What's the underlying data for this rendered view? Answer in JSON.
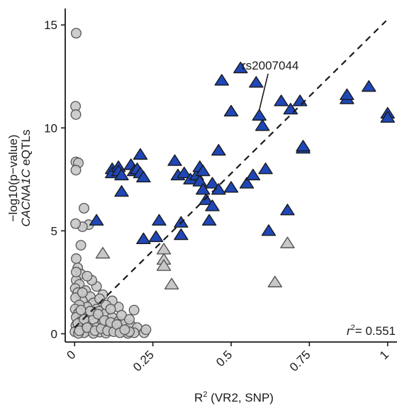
{
  "chart_data": {
    "type": "scatter",
    "title": "",
    "xlabel_main": "R",
    "xlabel_sup": "2",
    "xlabel_rest": " (VR2, SNP)",
    "ylabel_line1": "−log10(p−value)",
    "ylabel_line2_italic": "CACNA1C",
    "ylabel_line2_rest": " eQTLs",
    "xlim": [
      -0.03,
      1.03
    ],
    "ylim": [
      -0.4,
      15.8
    ],
    "x_ticks": [
      0,
      0.25,
      0.5,
      0.75,
      1
    ],
    "x_tick_labels": [
      "0",
      "0.25",
      "0.5",
      "0.75",
      "1"
    ],
    "y_ticks": [
      0,
      5,
      10,
      15
    ],
    "y_tick_labels": [
      "0",
      "5",
      "10",
      "15"
    ],
    "grid": false,
    "legend": "none",
    "colors": {
      "gray_fill": "#c8c8c8",
      "blue_fill": "#1f47b8",
      "edge": "#1a1a1a",
      "edge_gray": "#555555"
    },
    "fit_line": {
      "x": [
        0,
        0.995
      ],
      "y": [
        0.3,
        15.2
      ],
      "style": "dashed"
    },
    "annotation_text": "rs2007044",
    "annotation_point": {
      "x": 0.59,
      "y": 10.6
    },
    "stat_label": "= 0.551",
    "stat_label_prefix": "r",
    "stat_label_sup": "2",
    "series": [
      {
        "marker": "circle",
        "fill": "gray",
        "points": [
          [
            0.005,
            14.6
          ],
          [
            0.003,
            11.05
          ],
          [
            0.004,
            10.65
          ],
          [
            0.004,
            8.35
          ],
          [
            0.012,
            8.3
          ],
          [
            0.004,
            7.95
          ],
          [
            0.03,
            6.1
          ],
          [
            0.045,
            5.3
          ],
          [
            0.025,
            5.2
          ],
          [
            0.003,
            5.35
          ],
          [
            0.02,
            4.3
          ],
          [
            0.005,
            3.65
          ],
          [
            0.01,
            3.2
          ],
          [
            0.02,
            2.9
          ],
          [
            0.005,
            2.6
          ],
          [
            0.015,
            2.4
          ],
          [
            0.035,
            2.1
          ],
          [
            0.002,
            2.2
          ],
          [
            0.01,
            2.0
          ],
          [
            0.05,
            1.8
          ],
          [
            0.025,
            1.6
          ],
          [
            0.003,
            1.75
          ],
          [
            0.06,
            1.5
          ],
          [
            0.04,
            1.3
          ],
          [
            0.07,
            1.2
          ],
          [
            0.015,
            1.4
          ],
          [
            0.08,
            1.1
          ],
          [
            0.002,
            1.2
          ],
          [
            0.03,
            1.0
          ],
          [
            0.1,
            1.0
          ],
          [
            0.05,
            0.9
          ],
          [
            0.012,
            1.0
          ],
          [
            0.12,
            0.8
          ],
          [
            0.06,
            0.7
          ],
          [
            0.005,
            0.8
          ],
          [
            0.14,
            0.6
          ],
          [
            0.02,
            0.6
          ],
          [
            0.09,
            0.55
          ],
          [
            0.16,
            0.5
          ],
          [
            0.035,
            0.45
          ],
          [
            0.18,
            0.4
          ],
          [
            0.11,
            0.35
          ],
          [
            0.004,
            0.4
          ],
          [
            0.07,
            0.3
          ],
          [
            0.2,
            0.3
          ],
          [
            0.025,
            0.25
          ],
          [
            0.13,
            0.2
          ],
          [
            0.045,
            0.15
          ],
          [
            0.15,
            0.12
          ],
          [
            0.001,
            0.1
          ],
          [
            0.08,
            0.08
          ],
          [
            0.19,
            0.05
          ],
          [
            0.03,
            0.05
          ],
          [
            0.1,
            0.03
          ],
          [
            0.06,
            0.02
          ],
          [
            0.17,
            0.02
          ],
          [
            0.012,
            0.02
          ],
          [
            0.14,
            1.3
          ],
          [
            0.12,
            1.6
          ],
          [
            0.09,
            1.9
          ],
          [
            0.07,
            2.3
          ],
          [
            0.055,
            2.6
          ],
          [
            0.04,
            2.8
          ],
          [
            0.1,
            1.4
          ],
          [
            0.08,
            1.7
          ],
          [
            0.15,
            0.9
          ],
          [
            0.175,
            0.7
          ],
          [
            0.19,
            1.15
          ],
          [
            0.175,
            0.1
          ],
          [
            0.222,
            0.05
          ],
          [
            0.228,
            0.2
          ],
          [
            0.005,
            3.0
          ],
          [
            0.01,
            0.5
          ],
          [
            0.015,
            0.15
          ],
          [
            0.02,
            1.15
          ],
          [
            0.025,
            2.0
          ],
          [
            0.03,
            0.7
          ],
          [
            0.04,
            0.3
          ],
          [
            0.05,
            1.1
          ],
          [
            0.065,
            0.15
          ],
          [
            0.075,
            0.95
          ],
          [
            0.085,
            0.25
          ],
          [
            0.095,
            0.65
          ],
          [
            0.105,
            0.15
          ],
          [
            0.115,
            0.55
          ],
          [
            0.125,
            0.1
          ],
          [
            0.135,
            0.45
          ],
          [
            0.145,
            0.05
          ],
          [
            0.16,
            0.2
          ],
          [
            0.115,
            1.2
          ]
        ]
      },
      {
        "marker": "triangle",
        "fill": "gray",
        "points": [
          [
            0.09,
            3.9
          ],
          [
            0.285,
            4.1
          ],
          [
            0.285,
            3.6
          ],
          [
            0.285,
            3.3
          ],
          [
            0.31,
            2.4
          ],
          [
            0.68,
            4.4
          ],
          [
            0.64,
            2.5
          ]
        ]
      },
      {
        "marker": "triangle",
        "fill": "blue",
        "points": [
          [
            0.07,
            5.5
          ],
          [
            0.12,
            8.0
          ],
          [
            0.12,
            7.8
          ],
          [
            0.14,
            8.1
          ],
          [
            0.14,
            7.9
          ],
          [
            0.15,
            7.7
          ],
          [
            0.15,
            6.9
          ],
          [
            0.18,
            8.2
          ],
          [
            0.19,
            7.9
          ],
          [
            0.2,
            8.0
          ],
          [
            0.21,
            8.7
          ],
          [
            0.21,
            7.8
          ],
          [
            0.22,
            7.6
          ],
          [
            0.22,
            4.6
          ],
          [
            0.26,
            4.7
          ],
          [
            0.27,
            5.5
          ],
          [
            0.32,
            8.4
          ],
          [
            0.33,
            7.7
          ],
          [
            0.34,
            5.4
          ],
          [
            0.34,
            4.8
          ],
          [
            0.35,
            7.8
          ],
          [
            0.37,
            7.5
          ],
          [
            0.39,
            7.7
          ],
          [
            0.4,
            8.1
          ],
          [
            0.4,
            7.4
          ],
          [
            0.41,
            7.9
          ],
          [
            0.41,
            7.0
          ],
          [
            0.42,
            6.5
          ],
          [
            0.43,
            5.5
          ],
          [
            0.44,
            6.2
          ],
          [
            0.44,
            7.3
          ],
          [
            0.46,
            8.9
          ],
          [
            0.46,
            7.0
          ],
          [
            0.5,
            7.1
          ],
          [
            0.55,
            7.3
          ],
          [
            0.57,
            7.7
          ],
          [
            0.61,
            8.0
          ],
          [
            0.62,
            5.0
          ],
          [
            0.47,
            12.3
          ],
          [
            0.5,
            10.8
          ],
          [
            0.53,
            12.9
          ],
          [
            0.58,
            12.2
          ],
          [
            0.59,
            10.6
          ],
          [
            0.6,
            10.1
          ],
          [
            0.66,
            11.3
          ],
          [
            0.69,
            10.9
          ],
          [
            0.72,
            11.3
          ],
          [
            0.73,
            9.0
          ],
          [
            0.73,
            9.1
          ],
          [
            0.68,
            6.0
          ],
          [
            0.87,
            11.4
          ],
          [
            0.87,
            11.6
          ],
          [
            0.94,
            12.0
          ],
          [
            1.0,
            10.7
          ],
          [
            1.0,
            10.5
          ]
        ]
      }
    ]
  }
}
